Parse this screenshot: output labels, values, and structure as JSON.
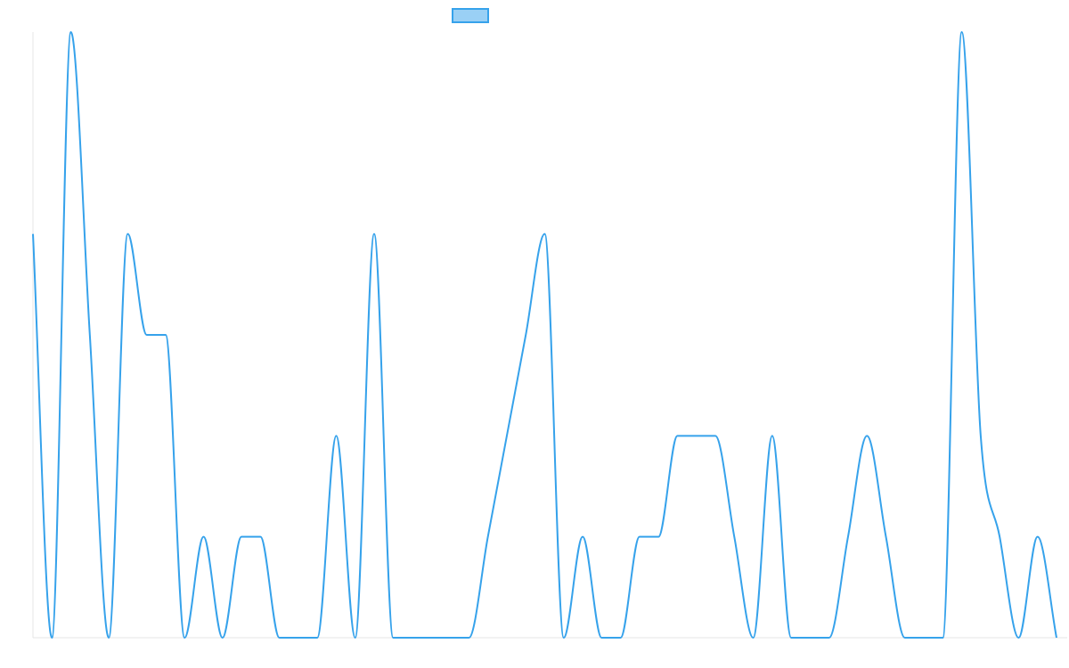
{
  "chart_data": {
    "type": "line",
    "title": "",
    "xlabel": "",
    "ylabel": "",
    "grid": false,
    "legend_placement": "top-center",
    "series": [
      {
        "name": "",
        "color": "#36a2eb",
        "fill_color": "#9ad0f5",
        "values": [
          4,
          0,
          6,
          3,
          0,
          4,
          3,
          3,
          0,
          1,
          0,
          1,
          1,
          0,
          0,
          0,
          2,
          0,
          4,
          0,
          0,
          0,
          0,
          0,
          1,
          2,
          3,
          4,
          0,
          1,
          0,
          0,
          1,
          1,
          2,
          2,
          2,
          1,
          0,
          2,
          0,
          0,
          0,
          1,
          2,
          1,
          0,
          0,
          0,
          6,
          2,
          1,
          0,
          1,
          0
        ]
      }
    ],
    "ylim": [
      0,
      6
    ]
  }
}
